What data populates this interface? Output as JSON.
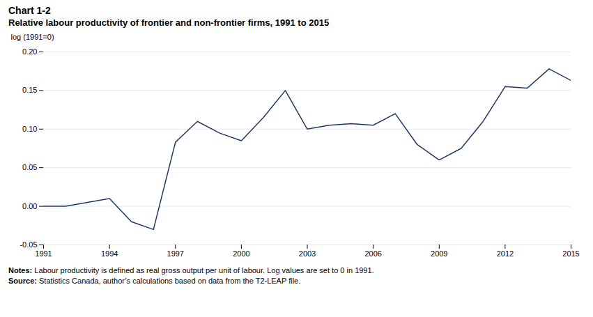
{
  "chart_data": {
    "type": "line",
    "title": "Chart 1-2",
    "subtitle": "Relative labour productivity of frontier and non-frontier firms, 1991 to 2015",
    "ylabel": "log (1991=0)",
    "x": [
      1991,
      1992,
      1993,
      1994,
      1995,
      1996,
      1997,
      1998,
      1999,
      2000,
      2001,
      2002,
      2003,
      2004,
      2005,
      2006,
      2007,
      2008,
      2009,
      2010,
      2011,
      2012,
      2013,
      2014,
      2015
    ],
    "values": [
      0.0,
      0.0,
      0.005,
      0.01,
      -0.02,
      -0.03,
      0.083,
      0.11,
      0.095,
      0.085,
      0.115,
      0.15,
      0.1,
      0.105,
      0.107,
      0.105,
      0.12,
      0.08,
      0.06,
      0.075,
      0.11,
      0.155,
      0.153,
      0.178,
      0.163
    ],
    "color": "#1f3864",
    "xlim": [
      1991,
      2015
    ],
    "xticks": [
      1991,
      1994,
      1997,
      2000,
      2003,
      2006,
      2009,
      2012,
      2015
    ],
    "ylim": [
      -0.05,
      0.2
    ],
    "yticks": [
      -0.05,
      {
        "value": 0,
        "label": "0.00"
      },
      0.05,
      {
        "value": 0.1,
        "label": "0.10"
      },
      0.15,
      {
        "value": 0.2,
        "label": "0.20"
      }
    ],
    "grid": true,
    "notes": {
      "label": "Notes:",
      "text": "Labour productivity is defined as real gross output per unit of labour. Log values are set to 0 in 1991."
    },
    "source": {
      "label": "Source:",
      "text": "Statistics Canada, author’s calculations based on data from the T2-LEAP file."
    }
  }
}
